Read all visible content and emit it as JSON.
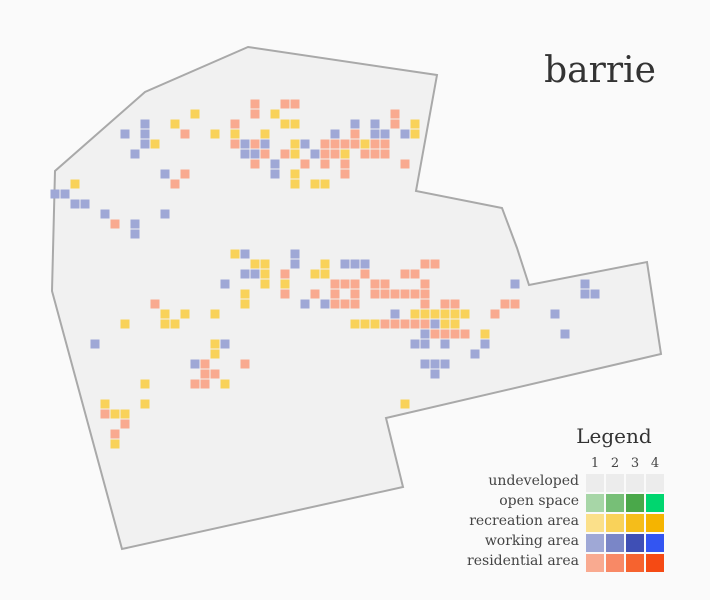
{
  "title": "barrie",
  "legend": {
    "title": "Legend",
    "columns": [
      "1",
      "2",
      "3",
      "4"
    ],
    "rows": [
      {
        "label": "undeveloped",
        "colors": [
          "#ececec",
          "#ececec",
          "#ececec",
          "#ececec"
        ]
      },
      {
        "label": "open space",
        "colors": [
          "#a7d6a7",
          "#77bf77",
          "#4aa84a",
          "#00d66f"
        ]
      },
      {
        "label": "recreation area",
        "colors": [
          "#fbe08a",
          "#f9d25a",
          "#f5bd1a",
          "#f5b400"
        ]
      },
      {
        "label": "working area",
        "colors": [
          "#9fa8d6",
          "#7a86c7",
          "#3f4fb5",
          "#3355f2"
        ]
      },
      {
        "label": "residential area",
        "colors": [
          "#f9aa90",
          "#f88966",
          "#f6632f",
          "#f54a14"
        ]
      }
    ]
  },
  "region": {
    "fill": "#f1f1f1",
    "stroke": "#a9a9a9"
  },
  "cells": {
    "recreation": [
      [
        195,
        114
      ],
      [
        175,
        124
      ],
      [
        215,
        134
      ],
      [
        235,
        134
      ],
      [
        265,
        134
      ],
      [
        155,
        144
      ],
      [
        125,
        324
      ],
      [
        165,
        314
      ],
      [
        165,
        324
      ],
      [
        175,
        324
      ],
      [
        185,
        314
      ],
      [
        215,
        314
      ],
      [
        145,
        384
      ],
      [
        145,
        404
      ],
      [
        105,
        404
      ],
      [
        105,
        414
      ],
      [
        115,
        414
      ],
      [
        125,
        414
      ],
      [
        125,
        424
      ],
      [
        115,
        444
      ],
      [
        235,
        254
      ],
      [
        255,
        264
      ],
      [
        265,
        264
      ],
      [
        265,
        274
      ],
      [
        245,
        294
      ],
      [
        245,
        304
      ],
      [
        265,
        284
      ],
      [
        285,
        284
      ],
      [
        325,
        264
      ],
      [
        315,
        274
      ],
      [
        355,
        324
      ],
      [
        365,
        324
      ],
      [
        375,
        324
      ],
      [
        405,
        404
      ],
      [
        215,
        344
      ],
      [
        215,
        354
      ],
      [
        225,
        384
      ],
      [
        415,
        314
      ],
      [
        425,
        314
      ],
      [
        435,
        314
      ],
      [
        445,
        314
      ],
      [
        445,
        324
      ],
      [
        455,
        314
      ],
      [
        455,
        324
      ],
      [
        465,
        314
      ],
      [
        485,
        334
      ],
      [
        495,
        314
      ],
      [
        515,
        304
      ],
      [
        425,
        364
      ],
      [
        295,
        144
      ],
      [
        295,
        154
      ],
      [
        295,
        174
      ],
      [
        295,
        184
      ],
      [
        315,
        184
      ],
      [
        325,
        184
      ],
      [
        345,
        154
      ],
      [
        365,
        144
      ],
      [
        395,
        114
      ],
      [
        415,
        124
      ],
      [
        415,
        134
      ],
      [
        275,
        114
      ],
      [
        285,
        124
      ],
      [
        295,
        124
      ],
      [
        75,
        184
      ],
      [
        325,
        274
      ],
      [
        345,
        284
      ]
    ],
    "working": [
      [
        125,
        134
      ],
      [
        145,
        124
      ],
      [
        145,
        134
      ],
      [
        135,
        154
      ],
      [
        145,
        144
      ],
      [
        165,
        174
      ],
      [
        55,
        194
      ],
      [
        65,
        194
      ],
      [
        75,
        204
      ],
      [
        85,
        204
      ],
      [
        105,
        214
      ],
      [
        135,
        224
      ],
      [
        135,
        234
      ],
      [
        165,
        214
      ],
      [
        245,
        144
      ],
      [
        245,
        154
      ],
      [
        255,
        154
      ],
      [
        275,
        164
      ],
      [
        275,
        174
      ],
      [
        265,
        144
      ],
      [
        305,
        144
      ],
      [
        315,
        154
      ],
      [
        335,
        134
      ],
      [
        355,
        124
      ],
      [
        375,
        124
      ],
      [
        375,
        134
      ],
      [
        385,
        134
      ],
      [
        395,
        124
      ],
      [
        405,
        134
      ],
      [
        245,
        254
      ],
      [
        255,
        274
      ],
      [
        295,
        254
      ],
      [
        295,
        264
      ],
      [
        345,
        264
      ],
      [
        355,
        264
      ],
      [
        365,
        264
      ],
      [
        305,
        304
      ],
      [
        245,
        274
      ],
      [
        225,
        284
      ],
      [
        325,
        304
      ],
      [
        95,
        344
      ],
      [
        225,
        344
      ],
      [
        195,
        364
      ],
      [
        515,
        284
      ],
      [
        585,
        284
      ],
      [
        585,
        294
      ],
      [
        595,
        294
      ],
      [
        555,
        314
      ],
      [
        565,
        334
      ],
      [
        485,
        344
      ],
      [
        475,
        354
      ],
      [
        455,
        334
      ],
      [
        445,
        344
      ],
      [
        435,
        324
      ],
      [
        425,
        364
      ],
      [
        435,
        364
      ],
      [
        435,
        374
      ],
      [
        445,
        364
      ],
      [
        415,
        344
      ],
      [
        425,
        344
      ],
      [
        425,
        334
      ],
      [
        395,
        314
      ]
    ],
    "residential": [
      [
        255,
        104
      ],
      [
        285,
        104
      ],
      [
        295,
        104
      ],
      [
        255,
        114
      ],
      [
        235,
        124
      ],
      [
        185,
        134
      ],
      [
        175,
        184
      ],
      [
        185,
        174
      ],
      [
        115,
        224
      ],
      [
        235,
        144
      ],
      [
        255,
        144
      ],
      [
        265,
        154
      ],
      [
        255,
        164
      ],
      [
        285,
        154
      ],
      [
        305,
        164
      ],
      [
        325,
        144
      ],
      [
        325,
        154
      ],
      [
        335,
        144
      ],
      [
        335,
        154
      ],
      [
        345,
        144
      ],
      [
        355,
        134
      ],
      [
        355,
        144
      ],
      [
        375,
        144
      ],
      [
        385,
        144
      ],
      [
        365,
        154
      ],
      [
        375,
        154
      ],
      [
        385,
        154
      ],
      [
        325,
        164
      ],
      [
        345,
        164
      ],
      [
        345,
        174
      ],
      [
        405,
        164
      ],
      [
        395,
        114
      ],
      [
        395,
        124
      ],
      [
        155,
        304
      ],
      [
        205,
        364
      ],
      [
        205,
        374
      ],
      [
        195,
        384
      ],
      [
        205,
        384
      ],
      [
        245,
        364
      ],
      [
        215,
        374
      ],
      [
        115,
        434
      ],
      [
        125,
        424
      ],
      [
        105,
        414
      ],
      [
        335,
        284
      ],
      [
        345,
        284
      ],
      [
        355,
        284
      ],
      [
        375,
        284
      ],
      [
        385,
        284
      ],
      [
        375,
        294
      ],
      [
        385,
        294
      ],
      [
        395,
        294
      ],
      [
        335,
        294
      ],
      [
        335,
        304
      ],
      [
        355,
        294
      ],
      [
        345,
        304
      ],
      [
        355,
        304
      ],
      [
        365,
        274
      ],
      [
        425,
        264
      ],
      [
        435,
        264
      ],
      [
        405,
        274
      ],
      [
        415,
        274
      ],
      [
        405,
        294
      ],
      [
        415,
        294
      ],
      [
        425,
        294
      ],
      [
        425,
        284
      ],
      [
        385,
        324
      ],
      [
        395,
        324
      ],
      [
        405,
        324
      ],
      [
        415,
        324
      ],
      [
        425,
        324
      ],
      [
        425,
        304
      ],
      [
        445,
        304
      ],
      [
        455,
        304
      ],
      [
        435,
        334
      ],
      [
        445,
        334
      ],
      [
        455,
        334
      ],
      [
        465,
        334
      ],
      [
        505,
        304
      ],
      [
        495,
        314
      ],
      [
        515,
        304
      ],
      [
        315,
        294
      ],
      [
        285,
        294
      ],
      [
        285,
        274
      ]
    ]
  }
}
